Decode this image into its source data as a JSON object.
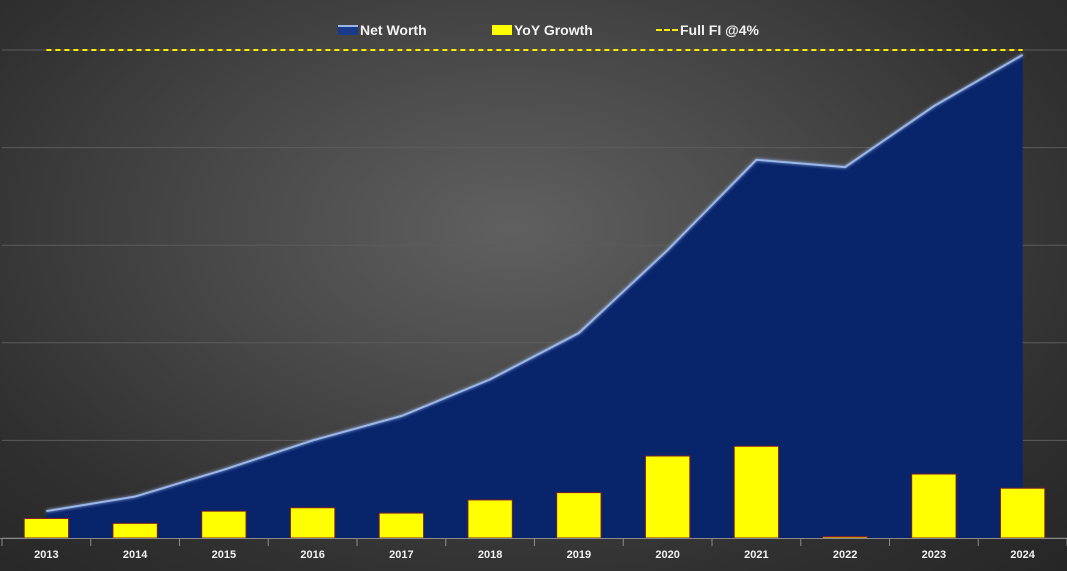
{
  "chart_data": {
    "type": "area",
    "categories": [
      "2013",
      "2014",
      "2015",
      "2016",
      "2017",
      "2018",
      "2019",
      "2020",
      "2021",
      "2022",
      "2023",
      "2024"
    ],
    "ylim": [
      0,
      100
    ],
    "grid": true,
    "legend_position": "top-center",
    "series": [
      {
        "name": "Net Worth",
        "type": "area",
        "color": "#08246b",
        "line_color": "#9bb7e8",
        "values": [
          5.5,
          8.5,
          14.0,
          20.0,
          25.0,
          32.5,
          42.0,
          59.0,
          77.5,
          76.0,
          88.5,
          99.0
        ]
      },
      {
        "name": "YoY Growth",
        "type": "bar",
        "color": "#ffff00",
        "values": [
          4.0,
          3.0,
          5.5,
          6.2,
          5.1,
          7.8,
          9.3,
          16.8,
          18.8,
          0.3,
          13.1,
          10.2
        ]
      },
      {
        "name": "Full FI @4%",
        "type": "line",
        "style": "dashed",
        "color": "#ffee00",
        "values": [
          100,
          100,
          100,
          100,
          100,
          100,
          100,
          100,
          100,
          100,
          100,
          100
        ]
      }
    ]
  },
  "legend": {
    "net_worth": "Net Worth",
    "yoy_growth": "YoY Growth",
    "full_fi": "Full FI @4%"
  }
}
